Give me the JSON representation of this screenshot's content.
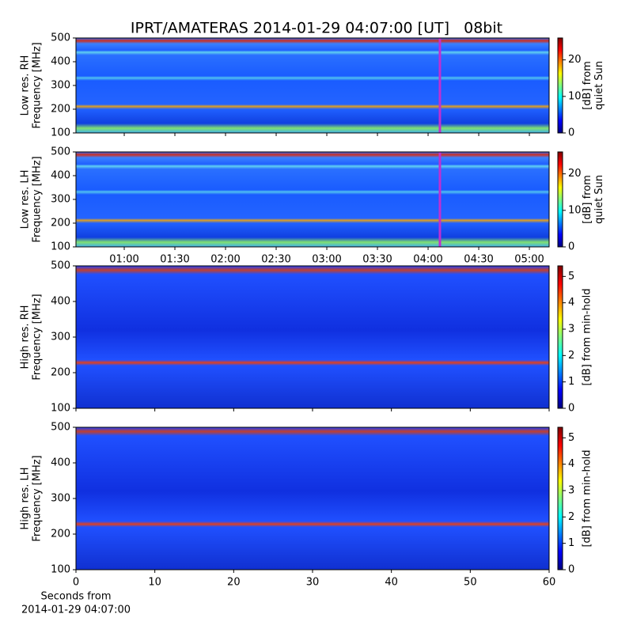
{
  "chart_data": [
    {
      "type": "heatmap",
      "title": "IPRT/AMATERAS 2014-01-29 04:07:00 [UT]   08bit",
      "ylabel": [
        "Low res. RH",
        "Frequency [MHz]"
      ],
      "ylim": [
        100,
        500
      ],
      "yticks": [
        100,
        200,
        300,
        400,
        500
      ],
      "xlim": [
        31.4,
        311.7
      ],
      "marker_x": 247,
      "marker_color": "#c030d0",
      "colorbar_label": [
        "[dB] from",
        "quiet Sun"
      ],
      "clim": [
        0,
        26
      ],
      "cticks": [
        0,
        10,
        20
      ]
    },
    {
      "type": "heatmap",
      "ylabel": [
        "Low res. LH",
        "Frequency [MHz]"
      ],
      "ylim": [
        100,
        500
      ],
      "yticks": [
        100,
        200,
        300,
        400,
        500
      ],
      "xlim": [
        31.4,
        311.7
      ],
      "marker_x": 247,
      "marker_color": "#c030d0",
      "xticks": [
        {
          "value": 60,
          "label": "01:00"
        },
        {
          "value": 90,
          "label": "01:30"
        },
        {
          "value": 120,
          "label": "02:00"
        },
        {
          "value": 150,
          "label": "02:30"
        },
        {
          "value": 180,
          "label": "03:00"
        },
        {
          "value": 210,
          "label": "03:30"
        },
        {
          "value": 240,
          "label": "04:00"
        },
        {
          "value": 270,
          "label": "04:30"
        },
        {
          "value": 300,
          "label": "05:00"
        }
      ],
      "colorbar_label": [
        "[dB] from",
        "quiet Sun"
      ],
      "clim": [
        0,
        26
      ],
      "cticks": [
        0,
        10,
        20
      ]
    },
    {
      "type": "heatmap",
      "ylabel": [
        "High res. RH",
        "Frequency [MHz]"
      ],
      "ylim": [
        100,
        500
      ],
      "yticks": [
        100,
        200,
        300,
        400,
        500
      ],
      "xlim": [
        0,
        60
      ],
      "colorbar_label": [
        "[dB] from min-hold"
      ],
      "clim": [
        0,
        5.4
      ],
      "cticks": [
        0,
        1,
        2,
        3,
        4,
        5
      ]
    },
    {
      "type": "heatmap",
      "ylabel": [
        "High res. LH",
        "Frequency [MHz]"
      ],
      "ylim": [
        100,
        500
      ],
      "yticks": [
        100,
        200,
        300,
        400,
        500
      ],
      "xlim": [
        0,
        60
      ],
      "xticks": [
        0,
        10,
        20,
        30,
        40,
        50,
        60
      ],
      "xlabel": [
        "Seconds from",
        "2014-01-29 04:07:00"
      ],
      "colorbar_label": [
        "[dB] from min-hold"
      ],
      "clim": [
        0,
        5.4
      ],
      "cticks": [
        0,
        1,
        2,
        3,
        4,
        5
      ]
    }
  ]
}
